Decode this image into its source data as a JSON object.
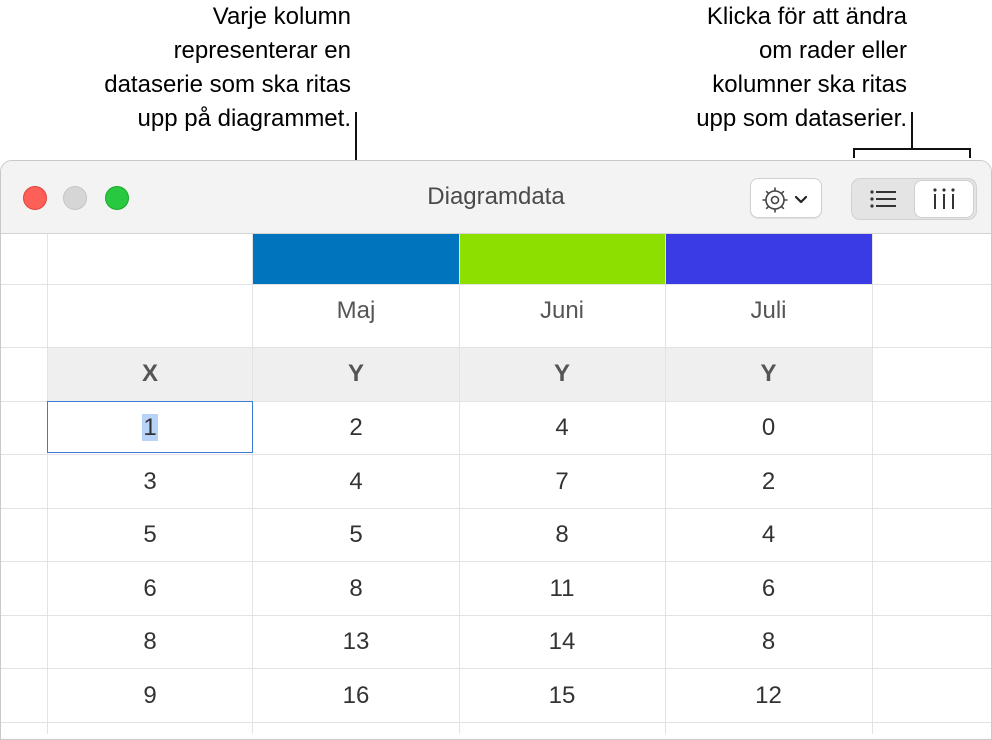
{
  "callouts": {
    "series_columns": "Varje kolumn\nrepresenterar en\ndataserie som ska ritas\nupp på diagrammet.",
    "toggle_rows_cols": "Klicka för att ändra\nom rader eller\nkolumner ska ritas\nupp som dataserier."
  },
  "window": {
    "title": "Diagramdata",
    "gear_icon": "gear-icon",
    "chevron_icon": "chevron-down-icon",
    "plot_rows_icon": "list-icon",
    "plot_columns_icon": "columns-icon"
  },
  "series": [
    {
      "name": "Maj",
      "color": "#0074bc"
    },
    {
      "name": "Juni",
      "color": "#8ddf00"
    },
    {
      "name": "Juli",
      "color": "#3b3be6"
    }
  ],
  "axis_headers": [
    "X",
    "Y",
    "Y",
    "Y"
  ],
  "rows": [
    [
      "1",
      "2",
      "4",
      "0"
    ],
    [
      "3",
      "4",
      "7",
      "2"
    ],
    [
      "5",
      "5",
      "8",
      "4"
    ],
    [
      "6",
      "8",
      "11",
      "6"
    ],
    [
      "8",
      "13",
      "14",
      "8"
    ],
    [
      "9",
      "16",
      "15",
      "12"
    ]
  ]
}
